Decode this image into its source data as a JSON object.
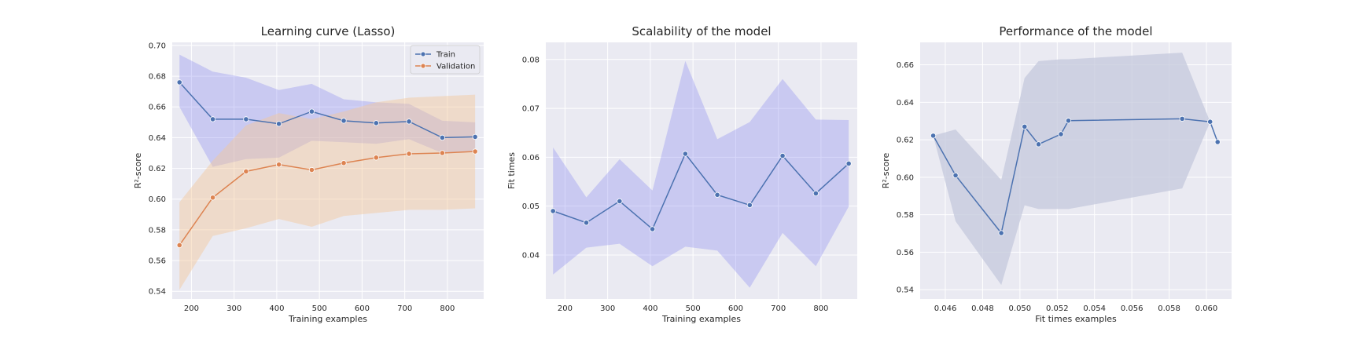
{
  "colors": {
    "background": "#eaeaf2",
    "grid": "#ffffff",
    "train": "#4c72b0",
    "validation": "#dd8452",
    "band_blue": "#8c8cf0",
    "band_orange": "#f5c89a",
    "band_gray": "#c4c8dc"
  },
  "chart_data": [
    {
      "type": "line",
      "title": "Learning curve (Lasso)",
      "xlabel": "Training examples",
      "ylabel": "R²-score",
      "xlim": [
        155,
        885
      ],
      "ylim": [
        0.535,
        0.702
      ],
      "xticks": [
        200,
        300,
        400,
        500,
        600,
        700,
        800
      ],
      "yticks": [
        0.54,
        0.56,
        0.58,
        0.6,
        0.62,
        0.64,
        0.66,
        0.68,
        0.7
      ],
      "ytick_labels": [
        "0.54",
        "0.56",
        "0.58",
        "0.60",
        "0.62",
        "0.64",
        "0.66",
        "0.68",
        "0.70"
      ],
      "grid": true,
      "legend": "top-right",
      "x": [
        172,
        250,
        328,
        405,
        482,
        557,
        633,
        710,
        788,
        865
      ],
      "series": [
        {
          "name": "Train",
          "color": "#4c72b0",
          "values": [
            0.676,
            0.652,
            0.652,
            0.649,
            0.657,
            0.651,
            0.6495,
            0.6505,
            0.64,
            0.6405
          ],
          "upper": [
            0.694,
            0.683,
            0.679,
            0.671,
            0.675,
            0.665,
            0.663,
            0.662,
            0.651,
            0.65
          ],
          "lower": [
            0.66,
            0.621,
            0.626,
            0.627,
            0.638,
            0.637,
            0.636,
            0.639,
            0.63,
            0.631
          ]
        },
        {
          "name": "Validation",
          "color": "#dd8452",
          "values": [
            0.57,
            0.601,
            0.618,
            0.6225,
            0.619,
            0.6235,
            0.627,
            0.6295,
            0.63,
            0.631
          ],
          "upper": [
            0.598,
            0.625,
            0.648,
            0.656,
            0.652,
            0.657,
            0.663,
            0.666,
            0.667,
            0.668
          ],
          "lower": [
            0.541,
            0.576,
            0.581,
            0.587,
            0.582,
            0.589,
            0.591,
            0.593,
            0.593,
            0.594
          ]
        }
      ]
    },
    {
      "type": "line",
      "title": "Scalability of the model",
      "xlabel": "Training examples",
      "ylabel": "Fit times",
      "xlim": [
        155,
        885
      ],
      "ylim": [
        0.031,
        0.0835
      ],
      "xticks": [
        200,
        300,
        400,
        500,
        600,
        700,
        800
      ],
      "yticks": [
        0.04,
        0.05,
        0.06,
        0.07,
        0.08
      ],
      "ytick_labels": [
        "0.04",
        "0.05",
        "0.06",
        "0.07",
        "0.08"
      ],
      "grid": true,
      "x": [
        172,
        250,
        328,
        405,
        482,
        557,
        633,
        710,
        788,
        865
      ],
      "series": [
        {
          "color": "#4c72b0",
          "values": [
            0.049,
            0.0466,
            0.051,
            0.0453,
            0.0607,
            0.0523,
            0.0502,
            0.0603,
            0.0526,
            0.0587
          ],
          "upper": [
            0.062,
            0.0518,
            0.0596,
            0.0532,
            0.0797,
            0.0637,
            0.0672,
            0.076,
            0.0677,
            0.0676
          ],
          "lower": [
            0.036,
            0.0415,
            0.0423,
            0.0377,
            0.0417,
            0.0409,
            0.0333,
            0.0445,
            0.0377,
            0.0499
          ]
        }
      ]
    },
    {
      "type": "line",
      "title": "Performance of the model",
      "xlabel": "Fit times examples",
      "ylabel": "R²-score",
      "xlim": [
        0.04465,
        0.06135
      ],
      "ylim": [
        0.535,
        0.672
      ],
      "xticks": [
        0.046,
        0.048,
        0.05,
        0.052,
        0.054,
        0.056,
        0.058,
        0.06
      ],
      "xtick_labels": [
        "0.046",
        "0.048",
        "0.050",
        "0.052",
        "0.054",
        "0.056",
        "0.058",
        "0.060"
      ],
      "yticks": [
        0.54,
        0.56,
        0.58,
        0.6,
        0.62,
        0.64,
        0.66
      ],
      "ytick_labels": [
        "0.54",
        "0.56",
        "0.58",
        "0.60",
        "0.62",
        "0.64",
        "0.66"
      ],
      "grid": true,
      "x": [
        0.04535,
        0.04655,
        0.049,
        0.05025,
        0.051,
        0.0522,
        0.0526,
        0.0587,
        0.0602,
        0.0606
      ],
      "series": [
        {
          "color": "#4c72b0",
          "values": [
            0.6222,
            0.601,
            0.5702,
            0.627,
            0.6176,
            0.623,
            0.6302,
            0.6312,
            0.6296,
            0.6188
          ],
          "upper": [
            0.6222,
            0.6255,
            0.5985,
            0.653,
            0.662,
            0.663,
            0.663,
            0.6665,
            0.6296,
            0.6188
          ],
          "lower": [
            0.6222,
            0.5765,
            0.5425,
            0.585,
            0.583,
            0.583,
            0.583,
            0.594,
            0.6296,
            0.6188
          ]
        }
      ]
    }
  ]
}
